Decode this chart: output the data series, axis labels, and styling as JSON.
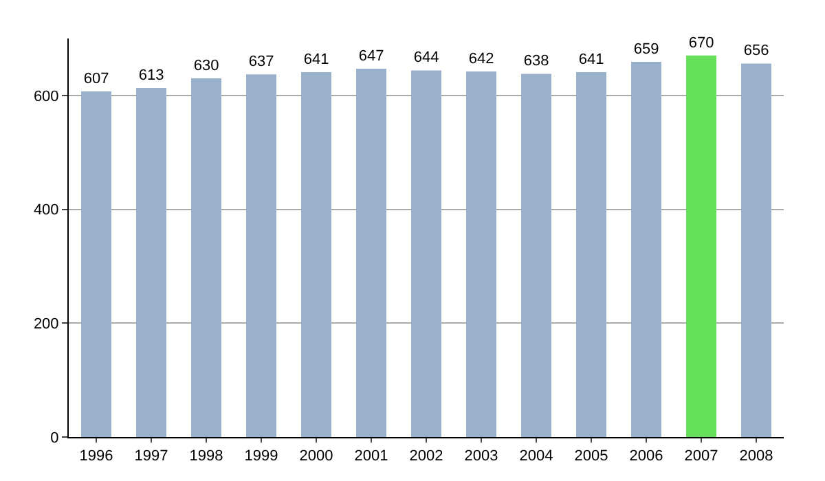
{
  "chart_data": {
    "type": "bar",
    "categories": [
      "1996",
      "1997",
      "1998",
      "1999",
      "2000",
      "2001",
      "2002",
      "2003",
      "2004",
      "2005",
      "2006",
      "2007",
      "2008"
    ],
    "values": [
      607,
      613,
      630,
      637,
      641,
      647,
      644,
      642,
      638,
      641,
      659,
      670,
      656
    ],
    "colors": [
      "#9ab1cb",
      "#9ab1cb",
      "#9ab1cb",
      "#9ab1cb",
      "#9ab1cb",
      "#9ab1cb",
      "#9ab1cb",
      "#9ab1cb",
      "#9ab1cb",
      "#9ab1cb",
      "#9ab1cb",
      "#66e05a",
      "#9ab1cb"
    ],
    "ylim": [
      0,
      700
    ],
    "yticks": [
      0,
      200,
      400,
      600
    ],
    "grid": "y",
    "data_labels": true
  }
}
